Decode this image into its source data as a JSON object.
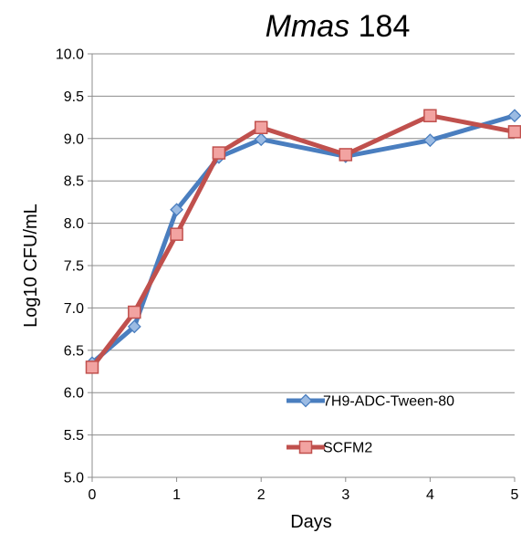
{
  "chart_data": {
    "type": "line",
    "title": {
      "italic": "Mmas",
      "rest": " 184"
    },
    "xlabel": "Days",
    "ylabel": "Log10 CFU/mL",
    "xlim": [
      0,
      5
    ],
    "ylim": [
      5.0,
      10.0
    ],
    "x_ticks": [
      "0",
      "1",
      "2",
      "3",
      "4",
      "5"
    ],
    "y_ticks": [
      "5.0",
      "5.5",
      "6.0",
      "6.5",
      "7.0",
      "7.5",
      "8.0",
      "8.5",
      "9.0",
      "9.5",
      "10.0"
    ],
    "grid": "horizontal",
    "legend_position": "bottom-right",
    "series": [
      {
        "name": "7H9-ADC-Tween-80",
        "color": "#4a7ebf",
        "marker": "diamond",
        "marker_fill": "#9bbbe3",
        "points": [
          {
            "x": 0,
            "y": 6.35
          },
          {
            "x": 0.5,
            "y": 6.78
          },
          {
            "x": 1,
            "y": 8.16
          },
          {
            "x": 1.5,
            "y": 8.78
          },
          {
            "x": 2,
            "y": 8.99
          },
          {
            "x": 3,
            "y": 8.79
          },
          {
            "x": 4,
            "y": 8.98
          },
          {
            "x": 5,
            "y": 9.27
          }
        ]
      },
      {
        "name": "SCFM2",
        "color": "#c0504d",
        "marker": "square",
        "marker_fill": "#f2a3a1",
        "points": [
          {
            "x": 0,
            "y": 6.3
          },
          {
            "x": 0.5,
            "y": 6.95
          },
          {
            "x": 1,
            "y": 7.87
          },
          {
            "x": 1.5,
            "y": 8.83
          },
          {
            "x": 2,
            "y": 9.13
          },
          {
            "x": 3,
            "y": 8.81
          },
          {
            "x": 4,
            "y": 9.27
          },
          {
            "x": 5,
            "y": 9.08
          }
        ]
      }
    ]
  }
}
